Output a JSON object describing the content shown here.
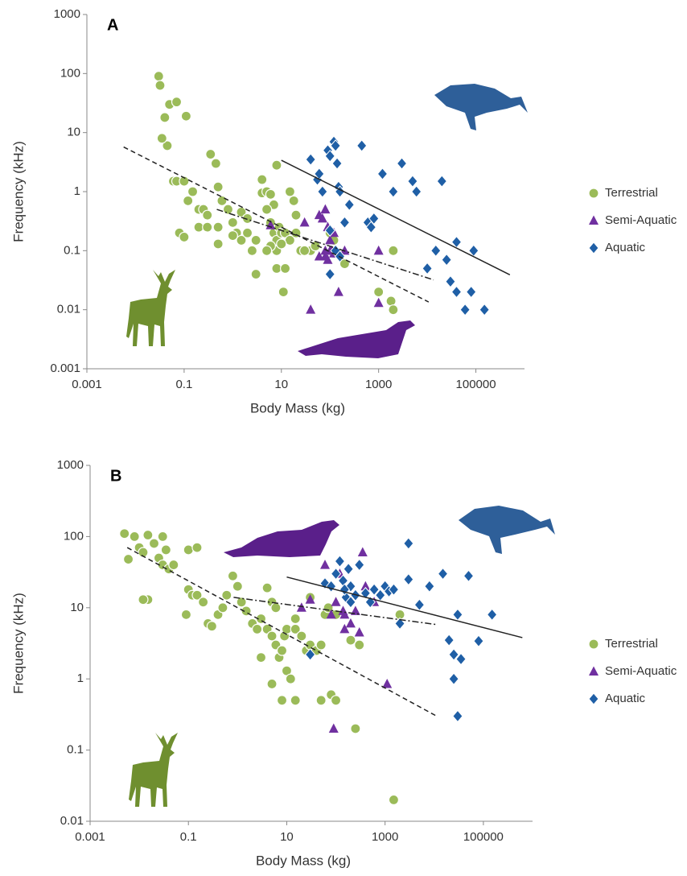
{
  "chart_data": [
    {
      "type": "scatter",
      "title": "A",
      "x_label": "Body Mass (kg)",
      "y_label": "Frequency (kHz)",
      "log_x": true,
      "log_y": true,
      "xlim": [
        0.001,
        1000000
      ],
      "ylim": [
        0.001,
        1000
      ],
      "xticks": [
        0.001,
        0.1,
        10,
        1000,
        100000
      ],
      "yticks": [
        0.001,
        0.01,
        0.1,
        1,
        10,
        100,
        1000
      ],
      "legend": "right",
      "series": [
        {
          "name": "Terrestrial",
          "color": "#9bbb59",
          "marker": "circle",
          "x": [
            0.03,
            0.032,
            0.04,
            0.045,
            0.05,
            0.07,
            0.11,
            0.035,
            0.06,
            0.07,
            0.1,
            0.12,
            0.15,
            0.2,
            0.25,
            0.3,
            0.35,
            0.45,
            0.5,
            0.6,
            0.8,
            1,
            1.2,
            1.5,
            2,
            3,
            2.5,
            4,
            4,
            5,
            6,
            7,
            8,
            5,
            6,
            7,
            8,
            9,
            10,
            12,
            15,
            20,
            25,
            3,
            8,
            12,
            15,
            18,
            20,
            40,
            50,
            100,
            120,
            30,
            8,
            11,
            200,
            1000,
            1800,
            2000,
            2000,
            0.08,
            0.1,
            0.2,
            0.3,
            0.5,
            0.5,
            1,
            1.5,
            2,
            6,
            10,
            5
          ],
          "values": [
            90,
            63,
            18,
            6,
            30,
            33,
            19,
            8,
            1.5,
            1.5,
            1.5,
            0.7,
            1,
            0.5,
            0.5,
            0.4,
            4.3,
            3,
            1.2,
            0.7,
            0.5,
            0.3,
            0.2,
            0.15,
            0.2,
            0.15,
            0.1,
            1.6,
            0.95,
            1,
            0.9,
            0.6,
            2.8,
            0.5,
            0.3,
            0.2,
            0.15,
            0.25,
            0.2,
            0.2,
            0.15,
            0.2,
            0.1,
            0.04,
            0.05,
            0.05,
            1,
            0.7,
            0.4,
            0.1,
            0.12,
            0.2,
            0.15,
            0.1,
            0.1,
            0.02,
            0.06,
            0.02,
            0.014,
            0.01,
            0.1,
            0.2,
            0.17,
            0.25,
            0.25,
            0.13,
            0.25,
            0.18,
            0.45,
            0.35,
            0.12,
            0.13,
            0.1
          ]
        },
        {
          "name": "Semi-Aquatic",
          "color": "#7030a0",
          "marker": "triangle",
          "x": [
            6,
            30,
            60,
            80,
            120,
            90,
            100,
            100,
            120,
            140,
            80,
            60,
            80,
            90,
            110,
            150,
            1000,
            1000,
            40,
            200,
            70
          ],
          "values": [
            0.27,
            0.3,
            0.4,
            0.5,
            0.2,
            0.25,
            0.15,
            0.1,
            0.09,
            0.09,
            0.1,
            0.08,
            0.08,
            0.07,
            0.1,
            0.02,
            0.1,
            0.013,
            0.01,
            0.1,
            0.35
          ]
        },
        {
          "name": "Aquatic",
          "color": "#1f5fa6",
          "marker": "diamond",
          "x": [
            40,
            55,
            60,
            70,
            90,
            100,
            120,
            130,
            140,
            100,
            150,
            160,
            250,
            200,
            450,
            600,
            700,
            800,
            1200,
            2000,
            3000,
            5000,
            6000,
            10000,
            15000,
            20000,
            25000,
            30000,
            40000,
            40000,
            60000,
            80000,
            150000,
            90000,
            100,
            130,
            160
          ],
          "values": [
            3.5,
            1.6,
            2,
            1,
            5,
            4,
            7,
            6,
            3,
            0.22,
            1.2,
            1,
            0.6,
            0.3,
            6,
            0.3,
            0.25,
            0.35,
            2,
            1,
            3,
            1.5,
            1,
            0.05,
            0.1,
            1.5,
            0.07,
            0.03,
            0.14,
            0.02,
            0.01,
            0.02,
            0.01,
            0.1,
            0.04,
            0.1,
            0.08
          ]
        }
      ],
      "trend_lines": [
        {
          "x": [
            0.0057,
            10700
          ],
          "y": [
            5.7,
            0.0135
          ],
          "color": "#222",
          "dash": "6 4"
        },
        {
          "x": [
            0.47,
            13500
          ],
          "y": [
            0.5,
            0.032
          ],
          "color": "#222",
          "dash": "8 3 2 3"
        },
        {
          "x": [
            10,
            500000
          ],
          "y": [
            3.4,
            0.039
          ],
          "color": "#222",
          "dash": "none"
        }
      ]
    },
    {
      "type": "scatter",
      "title": "B",
      "x_label": "Body Mass (kg)",
      "y_label": "Frequency (kHz)",
      "log_x": true,
      "log_y": true,
      "xlim": [
        0.001,
        1000000
      ],
      "ylim": [
        0.01,
        1000
      ],
      "xticks": [
        0.001,
        0.1,
        10,
        1000,
        100000
      ],
      "yticks": [
        0.01,
        0.1,
        1,
        10,
        100,
        1000
      ],
      "legend": "right",
      "series": [
        {
          "name": "Terrestrial",
          "color": "#9bbb59",
          "marker": "circle",
          "x": [
            0.005,
            0.006,
            0.008,
            0.01,
            0.012,
            0.015,
            0.02,
            0.025,
            0.03,
            0.03,
            0.04,
            0.05,
            0.035,
            0.015,
            0.012,
            0.1,
            0.15,
            0.1,
            0.09,
            0.12,
            0.15,
            0.2,
            0.25,
            0.3,
            0.4,
            0.5,
            0.6,
            0.8,
            1,
            1.2,
            1.5,
            2,
            2.5,
            3,
            4,
            5,
            6,
            4,
            5,
            6,
            7,
            8,
            9,
            10,
            10,
            12,
            15,
            20,
            25,
            30,
            40,
            50,
            60,
            70,
            3,
            5,
            8,
            15,
            50,
            80,
            100,
            200,
            250,
            2000,
            1500,
            300,
            15,
            30,
            100
          ],
          "values": [
            110,
            48,
            100,
            70,
            60,
            105,
            80,
            50,
            40,
            100,
            35,
            40,
            65,
            13,
            13,
            65,
            70,
            18,
            8,
            15,
            15,
            12,
            6,
            5.5,
            8,
            10,
            15,
            28,
            20,
            12,
            9,
            6,
            5,
            7,
            19,
            12,
            10,
            5,
            4,
            3,
            2,
            2.5,
            4,
            5,
            1.3,
            1,
            5,
            4,
            2.5,
            3,
            2.5,
            3,
            8,
            10,
            2,
            0.85,
            0.5,
            0.5,
            0.5,
            0.6,
            0.5,
            3.5,
            0.2,
            8,
            0.02,
            3,
            7,
            14,
            8
          ]
        },
        {
          "name": "Semi-Aquatic",
          "color": "#7030a0",
          "marker": "triangle",
          "x": [
            20,
            30,
            60,
            80,
            100,
            120,
            150,
            150,
            200,
            250,
            300,
            350,
            400,
            90,
            1100,
            600,
            140
          ],
          "values": [
            10,
            13,
            40,
            8,
            12,
            30,
            8,
            5,
            6,
            9,
            4.5,
            60,
            20,
            0.2,
            0.85,
            12,
            9
          ]
        },
        {
          "name": "Aquatic",
          "color": "#1f5fa6",
          "marker": "diamond",
          "x": [
            30,
            60,
            80,
            100,
            120,
            140,
            160,
            180,
            200,
            250,
            300,
            400,
            500,
            600,
            800,
            1000,
            1200,
            1500,
            2000,
            3000,
            3000,
            5000,
            8000,
            15000,
            20000,
            25000,
            25000,
            30000,
            30000,
            35000,
            50000,
            80000,
            150000,
            150,
            200
          ],
          "values": [
            2.2,
            22,
            20,
            30,
            45,
            24,
            14,
            35,
            20,
            15,
            40,
            16,
            12,
            18,
            15,
            20,
            17,
            18,
            6,
            25,
            80,
            11,
            20,
            30,
            3.5,
            1,
            2.2,
            8,
            0.3,
            1.9,
            28,
            3.4,
            8,
            18,
            12
          ]
        }
      ],
      "trend_lines": [
        {
          "x": [
            0.0057,
            11200
          ],
          "y": [
            70,
            0.3
          ],
          "color": "#222",
          "dash": "6 4"
        },
        {
          "x": [
            0.83,
            11200
          ],
          "y": [
            14,
            5.8
          ],
          "color": "#222",
          "dash": "8 3 2 3"
        },
        {
          "x": [
            10,
            620000
          ],
          "y": [
            27,
            3.8
          ],
          "color": "#222",
          "dash": "none"
        }
      ]
    }
  ]
}
